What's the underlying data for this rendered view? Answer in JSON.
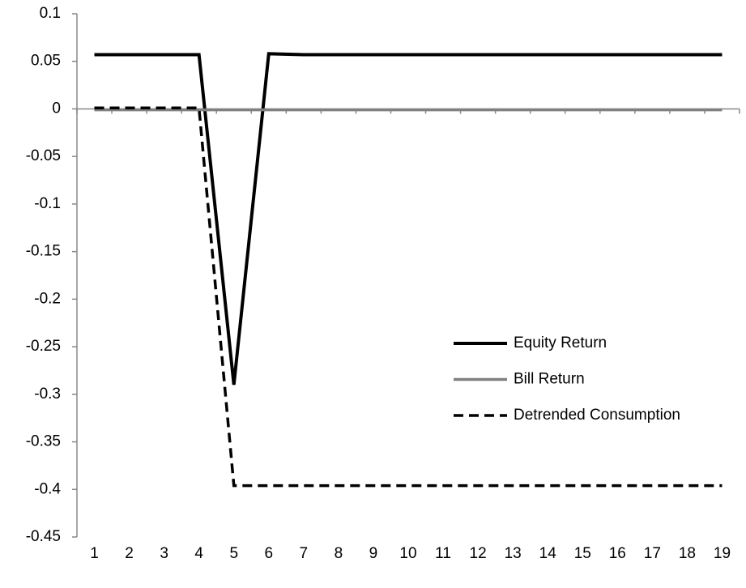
{
  "chart_data": {
    "type": "line",
    "categories": [
      "1",
      "2",
      "3",
      "4",
      "5",
      "6",
      "7",
      "8",
      "9",
      "10",
      "11",
      "12",
      "13",
      "14",
      "15",
      "16",
      "17",
      "18",
      "19"
    ],
    "series": [
      {
        "name": "Equity Return",
        "color": "#000000",
        "style": "solid",
        "width": 4,
        "values": [
          0.057,
          0.057,
          0.057,
          0.057,
          -0.29,
          0.058,
          0.057,
          0.057,
          0.057,
          0.057,
          0.057,
          0.057,
          0.057,
          0.057,
          0.057,
          0.057,
          0.057,
          0.057,
          0.057
        ]
      },
      {
        "name": "Bill Return",
        "color": "#808080",
        "style": "solid",
        "width": 3.5,
        "values": [
          -0.001,
          -0.001,
          -0.001,
          -0.001,
          -0.001,
          -0.001,
          -0.001,
          -0.001,
          -0.001,
          -0.001,
          -0.001,
          -0.001,
          -0.001,
          -0.001,
          -0.001,
          -0.001,
          -0.001,
          -0.001,
          -0.001
        ]
      },
      {
        "name": "Detrended Consumption",
        "color": "#000000",
        "style": "dashed",
        "width": 3.5,
        "values": [
          0.001,
          0.001,
          0.001,
          0.001,
          -0.396,
          -0.396,
          -0.396,
          -0.396,
          -0.396,
          -0.396,
          -0.396,
          -0.396,
          -0.396,
          -0.396,
          -0.396,
          -0.396,
          -0.396,
          -0.396,
          -0.396
        ]
      }
    ],
    "ylim": [
      -0.45,
      0.1
    ],
    "yticks": [
      0.1,
      0.05,
      0,
      -0.05,
      -0.1,
      -0.15,
      -0.2,
      -0.25,
      -0.3,
      -0.35,
      -0.4,
      -0.45
    ],
    "grid": false,
    "legend": "right"
  }
}
